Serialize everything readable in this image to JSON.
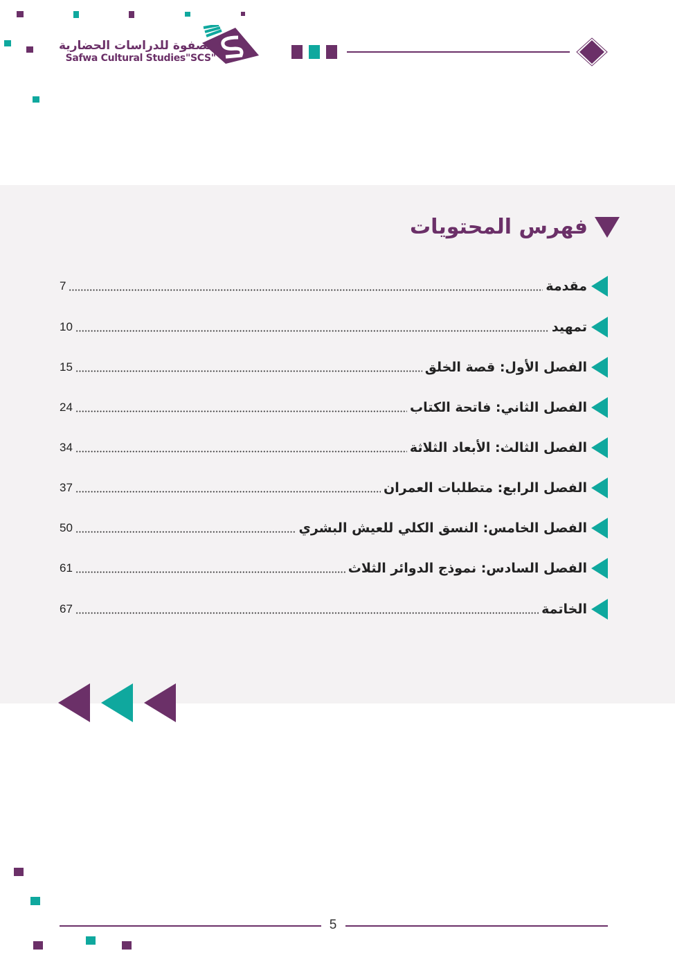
{
  "header": {
    "logo_arabic": "الصفوة للدراسات الحضارية",
    "logo_english": "Safwa Cultural Studies\"SCS\""
  },
  "toc": {
    "title": "فهرس المحتويات",
    "items": [
      {
        "label": "مقدمة",
        "page": "7"
      },
      {
        "label": "تمهيد",
        "page": "10"
      },
      {
        "label": "الفصل الأول: قصة الخلق",
        "page": "15"
      },
      {
        "label": "الفصل الثاني: فاتحة الكتاب",
        "page": "24"
      },
      {
        "label": "الفصل الثالث: الأبعاد الثلاثة",
        "page": "34"
      },
      {
        "label": "الفصل الرابع: متطلبات العمران",
        "page": "37"
      },
      {
        "label": "الفصل الخامس: النسق الكلي للعيش البشري",
        "page": "50"
      },
      {
        "label": "الفصل السادس: نموذج الدوائر الثلاث",
        "page": "61"
      },
      {
        "label": "الخاتمة",
        "page": "67"
      }
    ]
  },
  "footer": {
    "page_number": "5"
  },
  "colors": {
    "purple": "#6b3068",
    "teal": "#0fa89e",
    "band": "#f4f2f3"
  }
}
